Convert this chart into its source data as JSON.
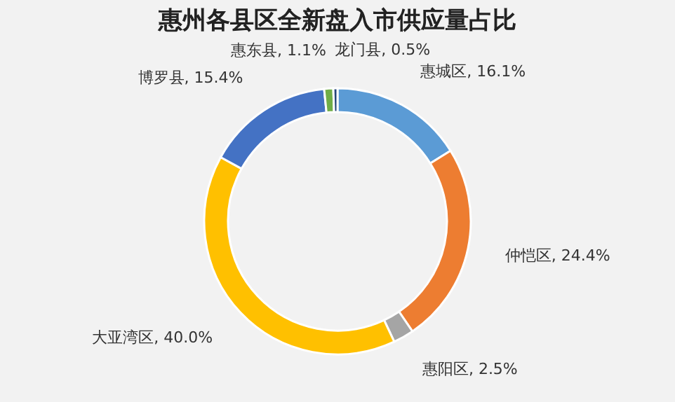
{
  "chart_data": {
    "type": "donut",
    "title": "惠州各县区全新盘入市供应量占比",
    "categories": [
      "惠城区",
      "仲恺区",
      "惠阳区",
      "大亚湾区",
      "博罗县",
      "惠东县",
      "龙门县"
    ],
    "values": [
      16.1,
      24.4,
      2.5,
      40.0,
      15.4,
      1.1,
      0.5
    ],
    "colors": [
      "#5b9bd5",
      "#ed7d31",
      "#a5a5a5",
      "#ffc000",
      "#4472c4",
      "#70ad47",
      "#264478"
    ],
    "value_labels": [
      "16.1%",
      "24.4%",
      "2.5%",
      "40.0%",
      "15.4%",
      "1.1%",
      "0.5%"
    ],
    "legend": false
  }
}
